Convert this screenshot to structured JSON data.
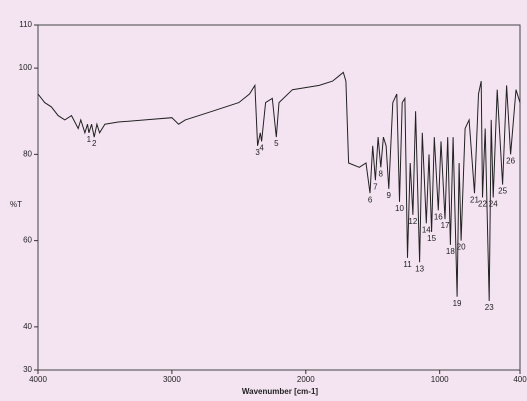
{
  "chart_data": {
    "type": "line",
    "xlabel": "Wavenumber [cm-1]",
    "ylabel": "%T",
    "xlim": [
      4000,
      400
    ],
    "xticks": [
      4000,
      3000,
      2000,
      1000,
      400
    ],
    "ylim": [
      30,
      110
    ],
    "yticks": [
      30,
      40,
      60,
      80,
      100,
      110
    ],
    "grid": false,
    "series": [
      {
        "color": "#222222",
        "x": [
          4000,
          3950,
          3900,
          3850,
          3800,
          3750,
          3700,
          3680,
          3650,
          3630,
          3620,
          3600,
          3580,
          3560,
          3540,
          3500,
          3400,
          3200,
          3000,
          2950,
          2900,
          2700,
          2500,
          2420,
          2380,
          2360,
          2340,
          2330,
          2300,
          2250,
          2220,
          2200,
          2100,
          1900,
          1800,
          1760,
          1720,
          1700,
          1680,
          1600,
          1550,
          1520,
          1500,
          1480,
          1460,
          1440,
          1420,
          1400,
          1380,
          1350,
          1320,
          1300,
          1280,
          1260,
          1240,
          1220,
          1200,
          1180,
          1150,
          1130,
          1100,
          1080,
          1060,
          1040,
          1010,
          990,
          960,
          940,
          920,
          900,
          870,
          855,
          840,
          810,
          780,
          740,
          710,
          690,
          680,
          660,
          630,
          615,
          600,
          570,
          530,
          500,
          470,
          430,
          400
        ],
        "values": [
          94,
          92,
          91,
          89,
          88,
          89,
          86,
          88,
          85,
          87,
          85,
          87,
          84,
          87,
          85,
          87,
          87.5,
          88,
          88.5,
          87,
          88,
          90,
          92,
          94,
          96,
          82,
          85,
          83,
          92,
          93,
          84,
          92,
          95,
          96,
          97,
          98,
          99,
          97,
          78,
          77,
          78,
          71,
          82,
          74,
          84,
          77,
          84,
          82,
          72,
          92,
          94,
          69,
          92,
          93,
          56,
          78,
          66,
          90,
          55,
          85,
          64,
          80,
          62,
          84,
          67,
          83,
          65,
          84,
          59,
          84,
          47,
          78,
          60,
          86,
          88,
          71,
          94,
          97,
          70,
          86,
          46,
          88,
          70,
          95,
          73,
          96,
          80,
          95,
          92
        ]
      }
    ],
    "annotations": [
      {
        "text": "1",
        "x": 3620,
        "y": 85
      },
      {
        "text": "2",
        "x": 3580,
        "y": 84
      },
      {
        "text": "3",
        "x": 2360,
        "y": 82
      },
      {
        "text": "4",
        "x": 2330,
        "y": 83
      },
      {
        "text": "5",
        "x": 2220,
        "y": 84
      },
      {
        "text": "6",
        "x": 1520,
        "y": 71
      },
      {
        "text": "7",
        "x": 1480,
        "y": 74
      },
      {
        "text": "8",
        "x": 1440,
        "y": 77
      },
      {
        "text": "9",
        "x": 1380,
        "y": 72
      },
      {
        "text": "10",
        "x": 1300,
        "y": 69
      },
      {
        "text": "11",
        "x": 1240,
        "y": 56
      },
      {
        "text": "12",
        "x": 1200,
        "y": 66
      },
      {
        "text": "13",
        "x": 1150,
        "y": 55
      },
      {
        "text": "14",
        "x": 1100,
        "y": 64
      },
      {
        "text": "15",
        "x": 1060,
        "y": 62
      },
      {
        "text": "16",
        "x": 1010,
        "y": 67
      },
      {
        "text": "17",
        "x": 960,
        "y": 65
      },
      {
        "text": "18",
        "x": 920,
        "y": 59
      },
      {
        "text": "19",
        "x": 870,
        "y": 47
      },
      {
        "text": "20",
        "x": 840,
        "y": 60
      },
      {
        "text": "21",
        "x": 740,
        "y": 71
      },
      {
        "text": "22",
        "x": 680,
        "y": 70
      },
      {
        "text": "23",
        "x": 630,
        "y": 46
      },
      {
        "text": "24",
        "x": 600,
        "y": 70
      },
      {
        "text": "25",
        "x": 530,
        "y": 73
      },
      {
        "text": "26",
        "x": 470,
        "y": 80
      }
    ]
  }
}
